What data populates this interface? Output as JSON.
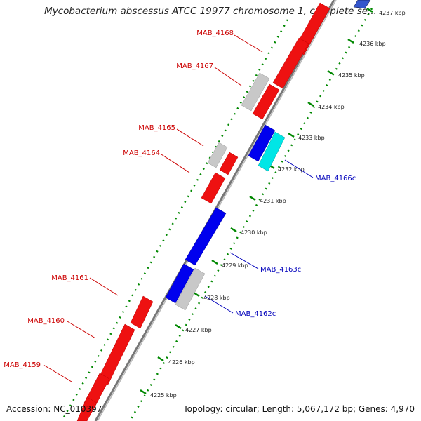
{
  "title": "Mycobacterium abscessus ATCC 19977 chromosome 1, complete se...",
  "footer": {
    "accession": "Accession: NC_010397",
    "topology": "Topology: circular; Length: 5,067,172 bp; Genes: 4,970"
  },
  "colors": {
    "forward": "#ee0000",
    "reverse": "#0000ee",
    "grey": "#c8c8c8",
    "cyan": "#00e6e6",
    "tick": "#008800",
    "backbone": "#888888",
    "forward_label": "#cc0000",
    "reverse_label": "#0000bb"
  },
  "ticks": [
    "4237 kbp",
    "4236 kbp",
    "4235 kbp",
    "4234 kbp",
    "4233 kbp",
    "4232 kbp",
    "4231 kbp",
    "4230 kbp",
    "4229 kbp",
    "4228 kbp",
    "4227 kbp",
    "4226 kbp",
    "4225 kbp"
  ],
  "forward_labels": [
    "MAB_4168",
    "MAB_4167",
    "MAB_4165",
    "MAB_4164",
    "MAB_4161",
    "MAB_4160",
    "MAB_4159"
  ],
  "reverse_labels": [
    "MAB_4166c",
    "MAB_4163c",
    "MAB_4162c"
  ]
}
